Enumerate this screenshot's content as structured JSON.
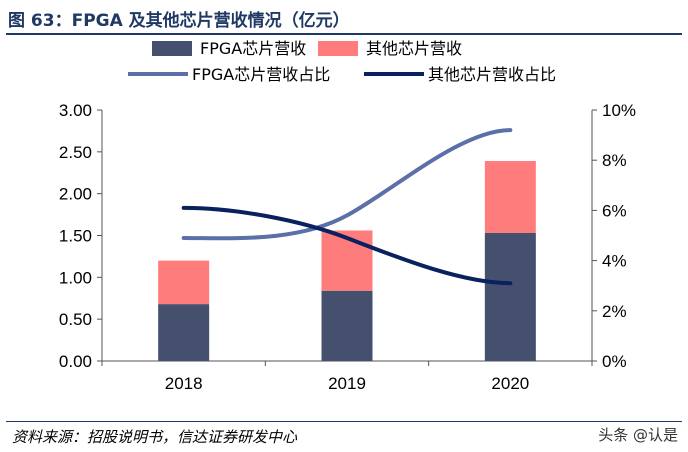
{
  "title": "图 63：FPGA 及其他芯片营收情况（亿元）",
  "source": "资料来源：招股说明书，信达证券研发中心",
  "watermark": "头条 @认是",
  "chart_data": {
    "type": "bar",
    "categories": [
      "2018",
      "2019",
      "2020"
    ],
    "series": [
      {
        "name": "FPGA芯片营收",
        "kind": "stacked-bar",
        "axis": "left",
        "color": "#44506e",
        "values": [
          0.68,
          0.84,
          1.53
        ]
      },
      {
        "name": "其他芯片营收",
        "kind": "stacked-bar",
        "axis": "left",
        "color": "#ff7c7c",
        "values": [
          0.52,
          0.72,
          0.86
        ]
      },
      {
        "name": "FPGA芯片营收占比",
        "kind": "line",
        "axis": "right",
        "color": "#5b6fa8",
        "values": [
          4.9,
          5.8,
          9.2
        ]
      },
      {
        "name": "其他芯片营收占比",
        "kind": "line",
        "axis": "right",
        "color": "#0a2160",
        "values": [
          6.1,
          4.9,
          3.1
        ]
      }
    ],
    "ylim": [
      0,
      3
    ],
    "yticks": [
      "0.00",
      "0.50",
      "1.00",
      "1.50",
      "2.00",
      "2.50",
      "3.00"
    ],
    "y2lim": [
      0,
      10
    ],
    "y2ticks": [
      "0%",
      "2%",
      "4%",
      "6%",
      "8%",
      "10%"
    ],
    "legend": "top",
    "grid": false
  }
}
